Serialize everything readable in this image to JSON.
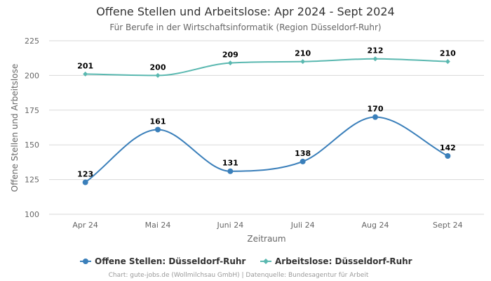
{
  "chart_data": {
    "type": "line",
    "title": "Offene Stellen und Arbeitslose: Apr 2024 - Sept 2024",
    "subtitle": "Für Berufe in der Wirtschaftsinformatik (Region Düsseldorf-Ruhr)",
    "xlabel": "Zeitraum",
    "ylabel": "Offene Stellen und Arbeitslose",
    "categories": [
      "Apr 24",
      "Mai 24",
      "Juni 24",
      "Juli 24",
      "Aug 24",
      "Sept 24"
    ],
    "ylim": [
      100,
      225
    ],
    "yticks": [
      100,
      125,
      150,
      175,
      200,
      225
    ],
    "grid": true,
    "legend_position": "bottom",
    "series": [
      {
        "name": "Offene Stellen: Düsseldorf-Ruhr",
        "values": [
          123,
          161,
          131,
          138,
          170,
          142
        ],
        "color": "#3a7fba",
        "marker": "circle"
      },
      {
        "name": "Arbeitslose: Düsseldorf-Ruhr",
        "values": [
          201,
          200,
          209,
          210,
          212,
          210
        ],
        "color": "#5ab8b0",
        "marker": "diamond"
      }
    ],
    "credits": "Chart: gute-jobs.de (Wollmilchsau GmbH) | Datenquelle: Bundesagentur für Arbeit"
  }
}
